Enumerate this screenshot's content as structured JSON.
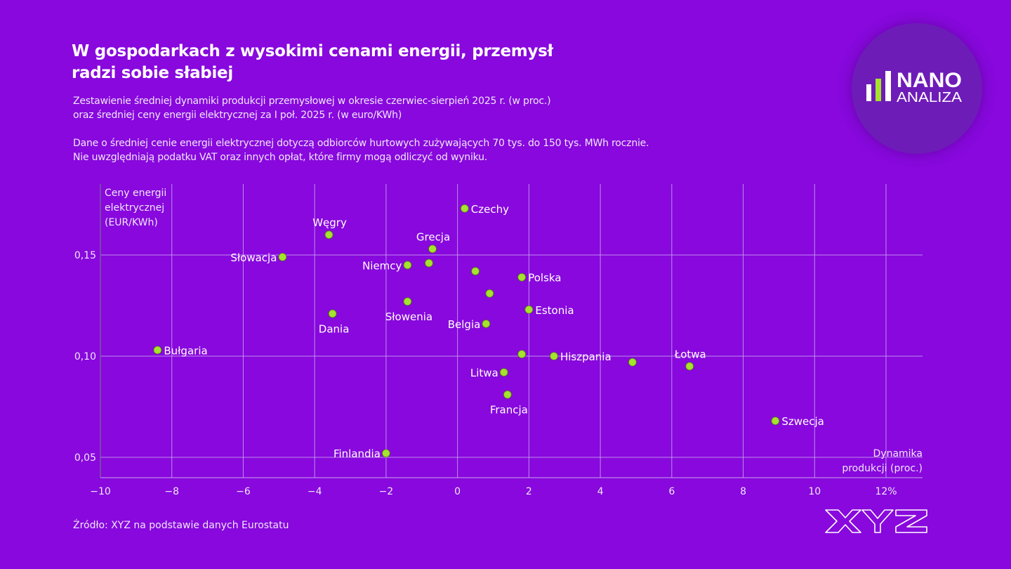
{
  "header": {
    "title_line1": "W gospodarkach z wysokimi cenami energii, przemysł",
    "title_line2": "radzi sobie słabiej",
    "subtitle_lines": [
      "Zestawienie średniej dynamiki produkcji przemysłowej w okresie czerwiec-sierpień 2025 r. (w proc.)",
      "oraz średniej ceny energii elektrycznej za I poł. 2025 r. (w euro/KWh)"
    ],
    "note_lines": [
      "Dane o średniej cenie energii elektrycznej dotyczą odbiorców hurtowych zużywających 70 tys. do 150 tys. MWh rocznie.",
      "Nie uwzględniają podatku VAT oraz innych opłat, które firmy mogą odliczyć od wyniku."
    ]
  },
  "logo": {
    "line1": "NANO",
    "line2": "ANALIZA",
    "accent": "#a6e22e"
  },
  "footer": {
    "source": "Źródło: XYZ na podstawie danych Eurostatu",
    "brand_logo": "XYZ"
  },
  "colors": {
    "background": "#8808dd",
    "point": "#a6e22e",
    "grid": "#c9a3f0",
    "text": "#ffffff"
  },
  "chart_data": {
    "type": "scatter",
    "title": "W gospodarkach z wysokimi cenami energii, przemysł radzi sobie słabiej",
    "xlabel_lines": [
      "Dynamika",
      "produkcji (proc.)"
    ],
    "ylabel_lines": [
      "Ceny energii",
      "elektrycznej",
      "(EUR/KWh)"
    ],
    "xlim": [
      -10,
      12
    ],
    "ylim": [
      0.04,
      0.18
    ],
    "x_ticks": [
      -10,
      -8,
      -6,
      -4,
      -2,
      0,
      2,
      4,
      6,
      8,
      10,
      12
    ],
    "x_tick_labels": [
      "−10",
      "−8",
      "−6",
      "−4",
      "−2",
      "0",
      "2",
      "4",
      "6",
      "8",
      "10",
      "12%"
    ],
    "y_ticks": [
      0.05,
      0.1,
      0.15
    ],
    "y_tick_labels": [
      "0,05",
      "0,10",
      "0,15"
    ],
    "grid": true,
    "points": [
      {
        "label": "Czechy",
        "x": 0.2,
        "y": 0.173,
        "pos": "right"
      },
      {
        "label": "Węgry",
        "x": -3.6,
        "y": 0.16,
        "pos": "top"
      },
      {
        "label": "Grecja",
        "x": -0.7,
        "y": 0.153,
        "pos": "top"
      },
      {
        "label": "Słowacja",
        "x": -4.9,
        "y": 0.149,
        "pos": "left"
      },
      {
        "label": "Niemcy",
        "x": -1.4,
        "y": 0.145,
        "pos": "left"
      },
      {
        "label": "",
        "x": -0.8,
        "y": 0.146,
        "pos": "none"
      },
      {
        "label": "",
        "x": 0.5,
        "y": 0.142,
        "pos": "none"
      },
      {
        "label": "Polska",
        "x": 1.8,
        "y": 0.139,
        "pos": "right"
      },
      {
        "label": "",
        "x": 0.9,
        "y": 0.131,
        "pos": "none"
      },
      {
        "label": "Słowenia",
        "x": -1.4,
        "y": 0.127,
        "pos": "bottom"
      },
      {
        "label": "Estonia",
        "x": 2.0,
        "y": 0.123,
        "pos": "right"
      },
      {
        "label": "Dania",
        "x": -3.5,
        "y": 0.121,
        "pos": "bottom"
      },
      {
        "label": "Belgia",
        "x": 0.8,
        "y": 0.116,
        "pos": "left"
      },
      {
        "label": "Bułgaria",
        "x": -8.4,
        "y": 0.103,
        "pos": "right"
      },
      {
        "label": "",
        "x": 1.8,
        "y": 0.101,
        "pos": "none"
      },
      {
        "label": "Hiszpania",
        "x": 2.7,
        "y": 0.1,
        "pos": "right"
      },
      {
        "label": "",
        "x": 4.9,
        "y": 0.097,
        "pos": "none"
      },
      {
        "label": "Łotwa",
        "x": 6.5,
        "y": 0.095,
        "pos": "top"
      },
      {
        "label": "Litwa",
        "x": 1.3,
        "y": 0.092,
        "pos": "left"
      },
      {
        "label": "Francja",
        "x": 1.4,
        "y": 0.081,
        "pos": "bottom"
      },
      {
        "label": "Szwecja",
        "x": 8.9,
        "y": 0.068,
        "pos": "right"
      },
      {
        "label": "Finlandia",
        "x": -2.0,
        "y": 0.052,
        "pos": "left"
      }
    ]
  }
}
